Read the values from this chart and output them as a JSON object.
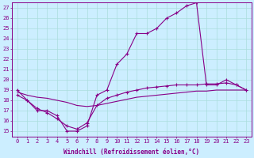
{
  "xlabel": "Windchill (Refroidissement éolien,°C)",
  "hours": [
    0,
    1,
    2,
    3,
    4,
    5,
    6,
    7,
    8,
    9,
    10,
    11,
    12,
    13,
    14,
    15,
    16,
    17,
    18,
    19,
    20,
    21,
    22,
    23
  ],
  "line1_temp": [
    19,
    18,
    17,
    17,
    16.5,
    15,
    15,
    15.5,
    18.5,
    19,
    21.5,
    22.5,
    24.5,
    24.5,
    25,
    26,
    26.5,
    27.2,
    27.5,
    19.5,
    19.5,
    20,
    19.5,
    19
  ],
  "line2_temp": [
    18.5,
    18,
    17.2,
    16.8,
    16.2,
    15.5,
    15.2,
    15.8,
    17.5,
    18.2,
    18.5,
    18.8,
    19,
    19.2,
    19.3,
    19.4,
    19.5,
    19.5,
    19.5,
    19.6,
    19.6,
    19.7,
    19.5,
    19
  ],
  "line3_temp": [
    18.8,
    18.5,
    18.3,
    18.2,
    18.0,
    17.8,
    17.5,
    17.4,
    17.5,
    17.7,
    17.9,
    18.1,
    18.3,
    18.4,
    18.5,
    18.6,
    18.7,
    18.8,
    18.9,
    18.9,
    19.0,
    19.0,
    19.0,
    19.0
  ],
  "line_color": "#880088",
  "bg_color": "#cceeff",
  "ylim": [
    14.5,
    27.5
  ],
  "yticks": [
    15,
    16,
    17,
    18,
    19,
    20,
    21,
    22,
    23,
    24,
    25,
    26,
    27
  ],
  "grid_color": "#aadddd",
  "markersize": 2.0,
  "tick_fontsize": 5,
  "label_fontsize": 5.5
}
